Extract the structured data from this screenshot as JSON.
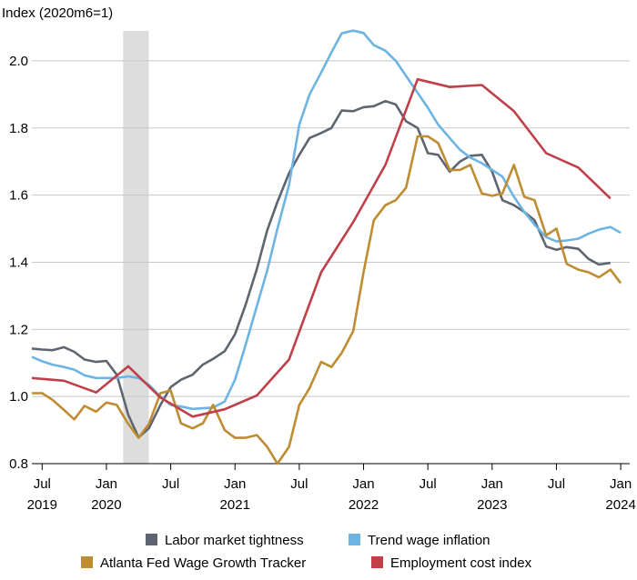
{
  "chart_data": {
    "type": "line",
    "ylabel": "Index (2020m6=1)",
    "ylim": [
      0.8,
      2.1
    ],
    "yticks": [
      "0.8",
      "1.0",
      "1.2",
      "1.4",
      "1.6",
      "1.8",
      "2.0"
    ],
    "xticks": [
      {
        "month": "Jul",
        "year": "2019",
        "t": 2019.5
      },
      {
        "month": "Jan",
        "year": "2020",
        "t": 2020.0
      },
      {
        "month": "Jul",
        "year": "",
        "t": 2020.5
      },
      {
        "month": "Jan",
        "year": "2021",
        "t": 2021.0
      },
      {
        "month": "Jul",
        "year": "",
        "t": 2021.5
      },
      {
        "month": "Jan",
        "year": "2022",
        "t": 2022.0
      },
      {
        "month": "Jul",
        "year": "",
        "t": 2022.5
      },
      {
        "month": "Jan",
        "year": "2023",
        "t": 2023.0
      },
      {
        "month": "Jul",
        "year": "",
        "t": 2023.5
      },
      {
        "month": "Jan",
        "year": "2024",
        "t": 2024.0
      }
    ],
    "xlim": [
      2019.42,
      2024.07
    ],
    "recession": [
      2020.13,
      2020.33
    ],
    "grid": "horizontal",
    "legend_position": "bottom",
    "series": [
      {
        "name": "Labor market tightness",
        "color": "#5f6570",
        "points": [
          [
            2019.42,
            1.143
          ],
          [
            2019.5,
            1.14
          ],
          [
            2019.58,
            1.138
          ],
          [
            2019.67,
            1.147
          ],
          [
            2019.75,
            1.133
          ],
          [
            2019.83,
            1.11
          ],
          [
            2019.92,
            1.103
          ],
          [
            2020.0,
            1.106
          ],
          [
            2020.08,
            1.065
          ],
          [
            2020.17,
            0.945
          ],
          [
            2020.25,
            0.878
          ],
          [
            2020.33,
            0.905
          ],
          [
            2020.42,
            0.975
          ],
          [
            2020.5,
            1.028
          ],
          [
            2020.58,
            1.05
          ],
          [
            2020.67,
            1.065
          ],
          [
            2020.75,
            1.095
          ],
          [
            2020.83,
            1.112
          ],
          [
            2020.92,
            1.135
          ],
          [
            2021.0,
            1.185
          ],
          [
            2021.08,
            1.27
          ],
          [
            2021.17,
            1.38
          ],
          [
            2021.25,
            1.495
          ],
          [
            2021.33,
            1.58
          ],
          [
            2021.42,
            1.665
          ],
          [
            2021.5,
            1.72
          ],
          [
            2021.58,
            1.77
          ],
          [
            2021.67,
            1.785
          ],
          [
            2021.75,
            1.8
          ],
          [
            2021.83,
            1.852
          ],
          [
            2021.92,
            1.85
          ],
          [
            2022.0,
            1.862
          ],
          [
            2022.08,
            1.865
          ],
          [
            2022.17,
            1.88
          ],
          [
            2022.25,
            1.87
          ],
          [
            2022.33,
            1.82
          ],
          [
            2022.42,
            1.8
          ],
          [
            2022.5,
            1.725
          ],
          [
            2022.58,
            1.72
          ],
          [
            2022.67,
            1.67
          ],
          [
            2022.75,
            1.7
          ],
          [
            2022.83,
            1.717
          ],
          [
            2022.92,
            1.72
          ],
          [
            2023.0,
            1.67
          ],
          [
            2023.08,
            1.585
          ],
          [
            2023.17,
            1.57
          ],
          [
            2023.25,
            1.55
          ],
          [
            2023.33,
            1.525
          ],
          [
            2023.42,
            1.447
          ],
          [
            2023.5,
            1.437
          ],
          [
            2023.58,
            1.445
          ],
          [
            2023.67,
            1.44
          ],
          [
            2023.75,
            1.41
          ],
          [
            2023.83,
            1.393
          ],
          [
            2023.92,
            1.398
          ]
        ]
      },
      {
        "name": "Trend wage inflation",
        "color": "#6cb4e4",
        "points": [
          [
            2019.42,
            1.118
          ],
          [
            2019.5,
            1.105
          ],
          [
            2019.58,
            1.095
          ],
          [
            2019.67,
            1.088
          ],
          [
            2019.75,
            1.08
          ],
          [
            2019.83,
            1.063
          ],
          [
            2019.92,
            1.055
          ],
          [
            2020.0,
            1.055
          ],
          [
            2020.08,
            1.055
          ],
          [
            2020.17,
            1.06
          ],
          [
            2020.25,
            1.055
          ],
          [
            2020.33,
            1.035
          ],
          [
            2020.42,
            1.0
          ],
          [
            2020.5,
            0.975
          ],
          [
            2020.58,
            0.97
          ],
          [
            2020.67,
            0.963
          ],
          [
            2020.75,
            0.965
          ],
          [
            2020.83,
            0.967
          ],
          [
            2020.92,
            0.985
          ],
          [
            2021.0,
            1.05
          ],
          [
            2021.08,
            1.15
          ],
          [
            2021.17,
            1.27
          ],
          [
            2021.25,
            1.375
          ],
          [
            2021.33,
            1.5
          ],
          [
            2021.42,
            1.63
          ],
          [
            2021.5,
            1.81
          ],
          [
            2021.58,
            1.9
          ],
          [
            2021.67,
            1.965
          ],
          [
            2021.75,
            2.025
          ],
          [
            2021.83,
            2.082
          ],
          [
            2021.92,
            2.09
          ],
          [
            2022.0,
            2.083
          ],
          [
            2022.08,
            2.047
          ],
          [
            2022.17,
            2.03
          ],
          [
            2022.25,
            2.0
          ],
          [
            2022.33,
            1.955
          ],
          [
            2022.42,
            1.905
          ],
          [
            2022.5,
            1.86
          ],
          [
            2022.58,
            1.81
          ],
          [
            2022.67,
            1.77
          ],
          [
            2022.75,
            1.735
          ],
          [
            2022.83,
            1.712
          ],
          [
            2022.92,
            1.695
          ],
          [
            2023.0,
            1.675
          ],
          [
            2023.08,
            1.655
          ],
          [
            2023.17,
            1.595
          ],
          [
            2023.25,
            1.55
          ],
          [
            2023.33,
            1.512
          ],
          [
            2023.42,
            1.475
          ],
          [
            2023.5,
            1.462
          ],
          [
            2023.58,
            1.465
          ],
          [
            2023.67,
            1.47
          ],
          [
            2023.75,
            1.485
          ],
          [
            2023.83,
            1.497
          ],
          [
            2023.92,
            1.505
          ],
          [
            2024.0,
            1.488
          ]
        ]
      },
      {
        "name": "Atlanta Fed Wage Growth Tracker",
        "color": "#be8c31",
        "points": [
          [
            2019.42,
            1.01
          ],
          [
            2019.5,
            1.01
          ],
          [
            2019.58,
            0.99
          ],
          [
            2019.67,
            0.96
          ],
          [
            2019.75,
            0.932
          ],
          [
            2019.83,
            0.972
          ],
          [
            2019.92,
            0.955
          ],
          [
            2020.0,
            0.982
          ],
          [
            2020.08,
            0.975
          ],
          [
            2020.17,
            0.918
          ],
          [
            2020.25,
            0.877
          ],
          [
            2020.33,
            0.918
          ],
          [
            2020.42,
            1.01
          ],
          [
            2020.5,
            1.018
          ],
          [
            2020.58,
            0.92
          ],
          [
            2020.67,
            0.905
          ],
          [
            2020.75,
            0.92
          ],
          [
            2020.83,
            0.975
          ],
          [
            2020.92,
            0.9
          ],
          [
            2021.0,
            0.877
          ],
          [
            2021.08,
            0.877
          ],
          [
            2021.17,
            0.885
          ],
          [
            2021.25,
            0.85
          ],
          [
            2021.33,
            0.8
          ],
          [
            2021.42,
            0.85
          ],
          [
            2021.5,
            0.975
          ],
          [
            2021.58,
            1.025
          ],
          [
            2021.67,
            1.103
          ],
          [
            2021.75,
            1.088
          ],
          [
            2021.83,
            1.13
          ],
          [
            2021.92,
            1.195
          ],
          [
            2022.0,
            1.37
          ],
          [
            2022.08,
            1.525
          ],
          [
            2022.17,
            1.57
          ],
          [
            2022.25,
            1.585
          ],
          [
            2022.33,
            1.622
          ],
          [
            2022.42,
            1.775
          ],
          [
            2022.5,
            1.775
          ],
          [
            2022.58,
            1.755
          ],
          [
            2022.67,
            1.675
          ],
          [
            2022.75,
            1.675
          ],
          [
            2022.83,
            1.69
          ],
          [
            2022.92,
            1.605
          ],
          [
            2023.0,
            1.598
          ],
          [
            2023.08,
            1.605
          ],
          [
            2023.17,
            1.69
          ],
          [
            2023.25,
            1.595
          ],
          [
            2023.33,
            1.585
          ],
          [
            2023.42,
            1.48
          ],
          [
            2023.5,
            1.5
          ],
          [
            2023.58,
            1.395
          ],
          [
            2023.67,
            1.378
          ],
          [
            2023.75,
            1.37
          ],
          [
            2023.83,
            1.355
          ],
          [
            2023.92,
            1.378
          ],
          [
            2024.0,
            1.338
          ]
        ]
      },
      {
        "name": "Employment cost index",
        "color": "#c0404a",
        "points": [
          [
            2019.42,
            1.055
          ],
          [
            2019.67,
            1.047
          ],
          [
            2019.92,
            1.012
          ],
          [
            2020.17,
            1.09
          ],
          [
            2020.42,
            0.997
          ],
          [
            2020.67,
            0.94
          ],
          [
            2020.92,
            0.962
          ],
          [
            2021.17,
            1.003
          ],
          [
            2021.42,
            1.11
          ],
          [
            2021.67,
            1.37
          ],
          [
            2021.92,
            1.52
          ],
          [
            2022.17,
            1.69
          ],
          [
            2022.42,
            1.945
          ],
          [
            2022.67,
            1.922
          ],
          [
            2022.92,
            1.928
          ],
          [
            2023.17,
            1.85
          ],
          [
            2023.42,
            1.725
          ],
          [
            2023.67,
            1.682
          ],
          [
            2023.92,
            1.59
          ]
        ]
      }
    ]
  }
}
